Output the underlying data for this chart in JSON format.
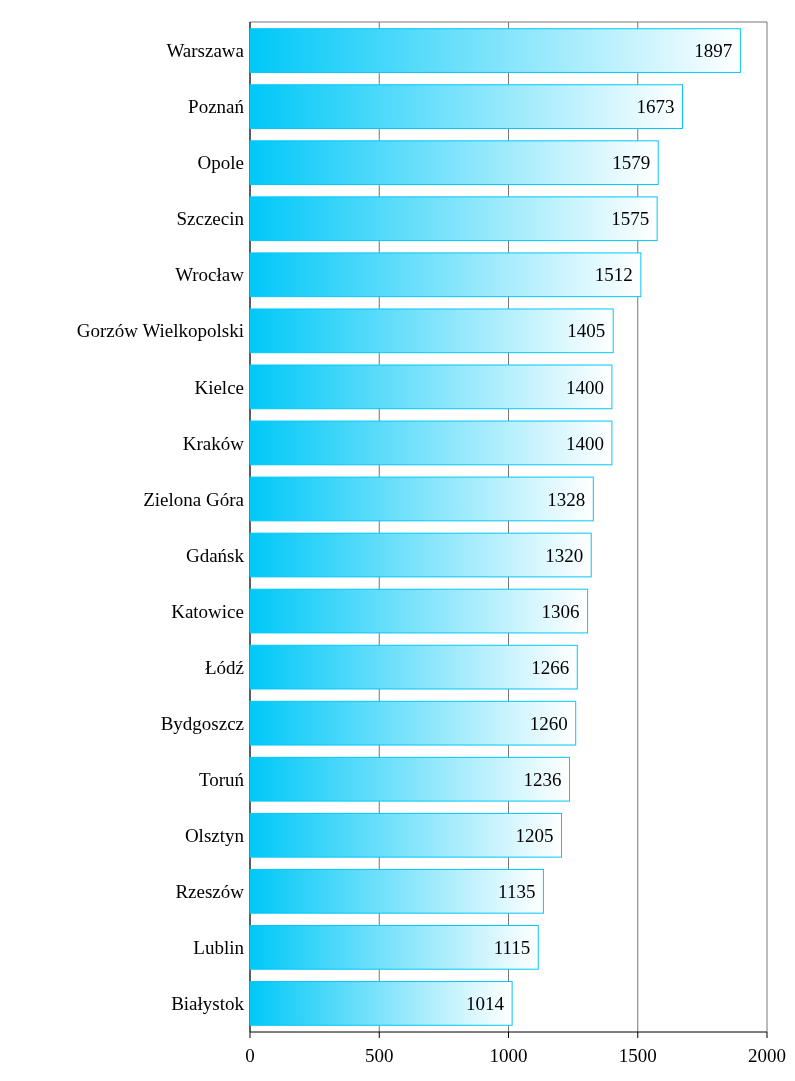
{
  "chart_data": {
    "type": "bar",
    "orientation": "horizontal",
    "categories": [
      "Warszawa",
      "Poznań",
      "Opole",
      "Szczecin",
      "Wrocław",
      "Gorzów Wielkopolski",
      "Kielce",
      "Kraków",
      "Zielona Góra",
      "Gdańsk",
      "Katowice",
      "Łódź",
      "Bydgoszcz",
      "Toruń",
      "Olsztyn",
      "Rzeszów",
      "Lublin",
      "Białystok"
    ],
    "values": [
      1897,
      1673,
      1579,
      1575,
      1512,
      1405,
      1400,
      1400,
      1328,
      1320,
      1306,
      1266,
      1260,
      1236,
      1205,
      1135,
      1115,
      1014
    ],
    "color": "#00c8f8",
    "xlim": [
      0,
      2000
    ],
    "xticks": [
      0,
      500,
      1000,
      1500,
      2000
    ],
    "grid": "x",
    "data_labels": true
  }
}
